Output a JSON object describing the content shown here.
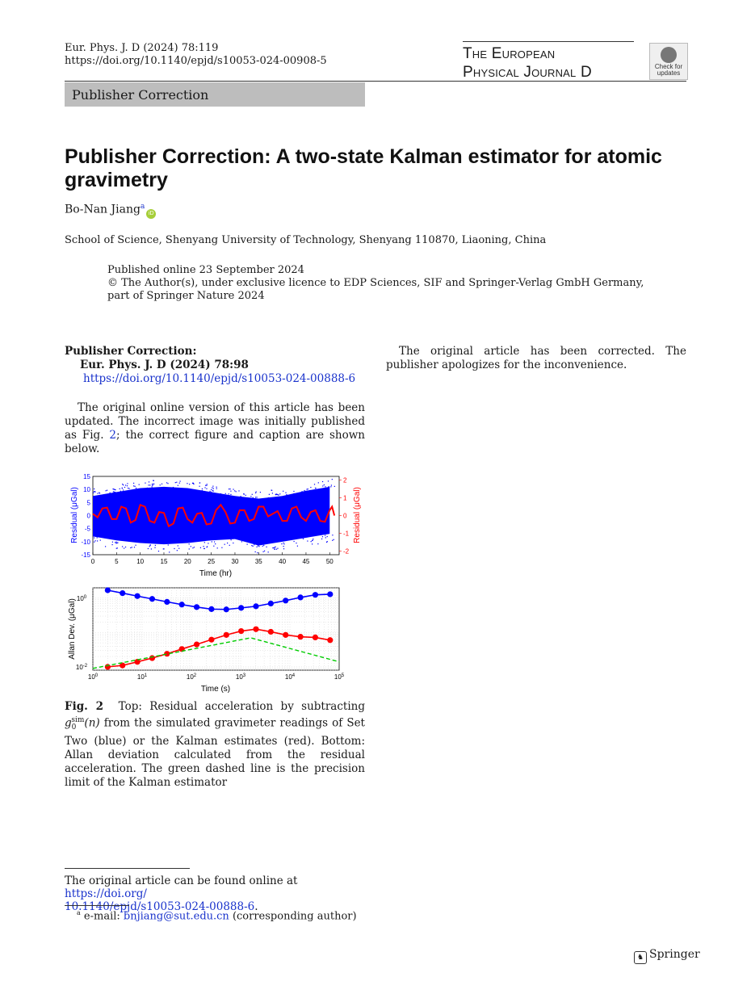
{
  "header": {
    "citation": "Eur. Phys. J. D (2024) 78:119",
    "doi": "https://doi.org/10.1140/epjd/s10053-024-00908-5",
    "journal_line1": "The European",
    "journal_line2": "Physical Journal D",
    "crossmark_line1": "Check for",
    "crossmark_line2": "updates"
  },
  "article_type": "Publisher Correction",
  "title": "Publisher Correction: A two-state Kalman estimator for atomic gravimetry",
  "author": {
    "name": "Bo-Nan Jiang",
    "affil_mark": "a"
  },
  "affiliation": "School of Science, Shenyang University of Technology, Shenyang 110870, Liaoning, China",
  "pub_info": {
    "published": "Published online 23 September 2024",
    "copyright_line1": "© The Author(s), under exclusive licence to EDP Sciences, SIF and Springer-Verlag GmbH Germany,",
    "copyright_line2": "part of Springer Nature 2024"
  },
  "correction": {
    "heading": "Publisher Correction:",
    "ref": "Eur. Phys. J. D (2024) 78:98",
    "link": "https://doi.org/10.1140/epjd/s10053-024-00888-6"
  },
  "body": {
    "para1_a": "The original online version of this article has been updated. The incorrect image was initially published as Fig. ",
    "para1_link": "2",
    "para1_b": "; the correct figure and caption are shown below.",
    "para2": "The original article has been corrected. The publisher apologizes for the inconvenience."
  },
  "figure": {
    "caption_label": "Fig. 2",
    "caption_a": "Top: Residual acceleration by subtracting ",
    "caption_sym": "g",
    "caption_sub": "0",
    "caption_sup": "sim",
    "caption_arg": "(n)",
    "caption_b": " from the simulated gravimeter readings of Set Two (blue) or the Kalman estimates (red). Bottom: Allan deviation calculated from the residual acceleration. The green dashed line is the precision limit of the Kalman estimator"
  },
  "chart_data": [
    {
      "type": "scatter",
      "title": "",
      "xlabel": "Time (hr)",
      "ylabel_left": "Residual (μGal)",
      "ylabel_right": "Residual (μGal)",
      "xlim": [
        0,
        52
      ],
      "ylim_left": [
        -15,
        15
      ],
      "ylim_right": [
        -2.2,
        2.2
      ],
      "x_ticks": [
        0,
        5,
        10,
        15,
        20,
        25,
        30,
        35,
        40,
        45,
        50
      ],
      "y_ticks_left": [
        -15,
        -10,
        -5,
        0,
        5,
        10,
        15
      ],
      "y_ticks_right": [
        -2,
        -1,
        0,
        1,
        2
      ],
      "series": [
        {
          "axis": "left",
          "color": "#0000ff",
          "description_band": {
            "x": [
              0,
              5,
              10,
              15,
              20,
              25,
              30,
              35,
              40,
              45,
              50
            ],
            "upper": [
              7.5,
              9,
              10.5,
              11,
              10.5,
              9,
              7.5,
              6.5,
              7.5,
              9.5,
              11
            ],
            "lower": [
              -8,
              -9.5,
              -10.5,
              -11,
              -10.5,
              -9.5,
              -9,
              -11.5,
              -10,
              -8.5,
              -7
            ]
          }
        },
        {
          "axis": "right",
          "color": "#ff0000",
          "x": [
            0,
            2,
            4,
            6,
            8,
            10,
            12,
            14,
            16,
            18,
            20,
            22,
            24,
            26,
            28,
            30,
            32,
            34,
            36,
            38,
            40,
            42,
            44,
            46,
            48,
            50,
            51
          ],
          "y": [
            0.1,
            0.4,
            -0.2,
            0.5,
            -0.4,
            0.6,
            -0.3,
            0.2,
            -0.6,
            0.4,
            -0.2,
            0.1,
            -0.5,
            0.3,
            0.2,
            -0.4,
            0.3,
            -0.2,
            0.5,
            0.1,
            -0.3,
            0.4,
            -0.1,
            0.2,
            -0.3,
            0.3,
            0.0
          ]
        }
      ]
    },
    {
      "type": "line",
      "title": "",
      "xlabel": "Time (s)",
      "ylabel": "Allan Dev. (μGal)",
      "x_scale": "log",
      "y_scale": "log",
      "xlim": [
        1,
        100000
      ],
      "ylim": [
        0.008,
        2
      ],
      "grid": true,
      "series": [
        {
          "color": "#0000ff",
          "marker": "circle",
          "x": [
            2,
            4,
            8,
            16,
            32,
            64,
            128,
            256,
            512,
            1024,
            2048,
            4096,
            8192,
            16384,
            32768,
            65536
          ],
          "y": [
            1.7,
            1.4,
            1.15,
            0.95,
            0.78,
            0.65,
            0.55,
            0.48,
            0.47,
            0.52,
            0.58,
            0.7,
            0.85,
            1.05,
            1.25,
            1.3
          ]
        },
        {
          "color": "#ff0000",
          "marker": "circle",
          "x": [
            2,
            4,
            8,
            16,
            32,
            64,
            128,
            256,
            512,
            1024,
            2048,
            4096,
            8192,
            16384,
            32768,
            65536
          ],
          "y": [
            0.01,
            0.011,
            0.014,
            0.018,
            0.024,
            0.033,
            0.045,
            0.062,
            0.085,
            0.11,
            0.125,
            0.105,
            0.085,
            0.075,
            0.072,
            0.06
          ]
        },
        {
          "color": "#00cc00",
          "style": "dashed",
          "x": [
            1,
            1600,
            100000
          ],
          "y": [
            0.009,
            0.07,
            0.014
          ]
        }
      ]
    }
  ],
  "footnotes": {
    "orig_a": "The original article can be found online at ",
    "orig_link1": "https://doi.org/",
    "orig_link2": "10.1140/epjd/s10053-024-00888-6",
    "orig_b": ".",
    "email_mark": "a",
    "email_label": " e-mail: ",
    "email": "bnjiang@sut.edu.cn",
    "email_note": " (corresponding author)"
  },
  "publisher": "Springer"
}
